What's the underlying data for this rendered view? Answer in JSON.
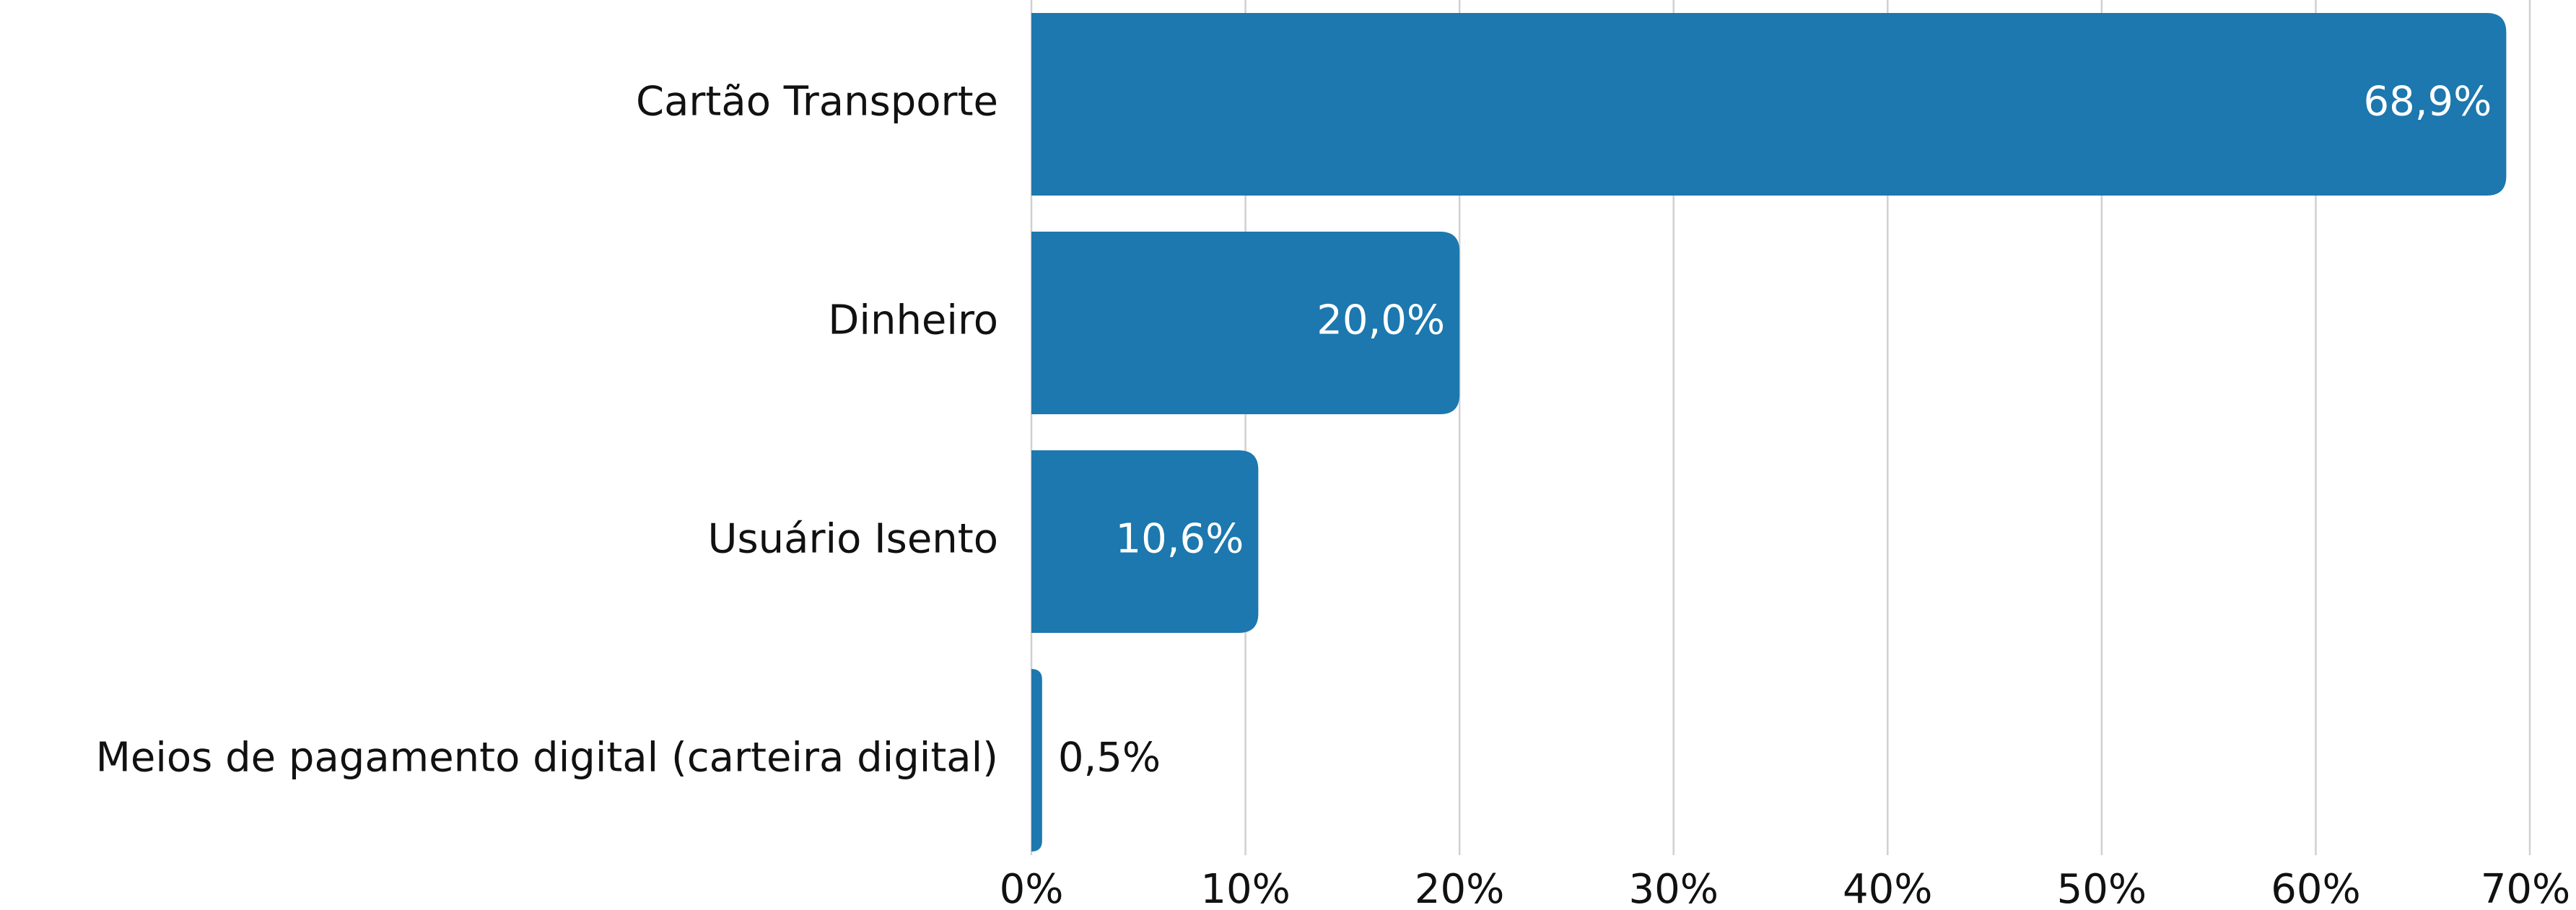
{
  "chart_data": {
    "type": "barh",
    "categories": [
      "Cartão Transporte",
      "Dinheiro",
      "Usuário Isento",
      "Meios de pagamento digital (carteira digital)"
    ],
    "values": [
      68.9,
      20.0,
      10.6,
      0.5
    ],
    "value_labels": [
      "68,9%",
      "20,0%",
      "10,6%",
      "0,5%"
    ],
    "color": "#1c78ae",
    "xlim": [
      0,
      70
    ],
    "xticks": [
      {
        "value": 0,
        "label": "0%"
      },
      {
        "value": 10,
        "label": "10%"
      },
      {
        "value": 20,
        "label": "20%"
      },
      {
        "value": 30,
        "label": "30%"
      },
      {
        "value": 40,
        "label": "40%"
      },
      {
        "value": 50,
        "label": "50%"
      },
      {
        "value": 60,
        "label": "60%"
      },
      {
        "value": 70,
        "label": "70%"
      }
    ],
    "grid": true
  }
}
